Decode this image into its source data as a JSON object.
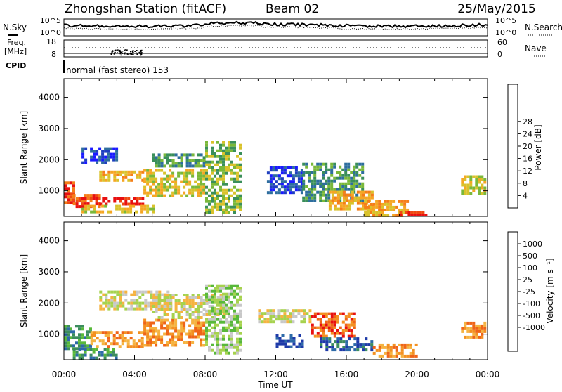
{
  "header": {
    "station": "Zhongshan Station (fitACF)",
    "beam": "Beam 02",
    "date": "25/May/2015"
  },
  "strip": {
    "nsky_label": "N.Sky",
    "nsearch_label": "N.Search",
    "nsky_ticks": [
      "10^5",
      "10^0"
    ],
    "nsearch_ticks": [
      "10^5",
      "10^0"
    ],
    "freq_label_1": "Freq.",
    "freq_label_2": "[MHz]",
    "freq_ticks": [
      "18",
      "8"
    ],
    "nave_label": "Nave",
    "nave_ticks": [
      "60",
      "0"
    ],
    "cpid_label": "CPID",
    "cpid_text": "normal (fast stereo) 153"
  },
  "axes": {
    "ylabel": "Slant Range [km]",
    "xlabel": "Time UT",
    "x_ticks": [
      "00:00",
      "04:00",
      "08:00",
      "12:00",
      "16:00",
      "20:00",
      "00:00"
    ],
    "y_ticks": [
      "1000",
      "2000",
      "3000",
      "4000"
    ],
    "x_range_hours": [
      0,
      24
    ],
    "y_range_km": [
      180,
      4600
    ]
  },
  "power_scale": {
    "label": "Power [dB]",
    "ticks": [
      "4",
      "8",
      "12",
      "16",
      "20",
      "24",
      "28"
    ],
    "colors": [
      "#1a1aff",
      "#1f3fbf",
      "#2e6e9e",
      "#3a8f5a",
      "#7ab83a",
      "#d9c22b",
      "#f5a623",
      "#f57e18",
      "#ef4a12",
      "#e81010"
    ]
  },
  "velocity_scale": {
    "label": "Velocity [m s⁻¹]",
    "ticks": [
      "1000",
      "500",
      "100",
      "25",
      "-25",
      "-100",
      "-500",
      "-1000"
    ],
    "colors": [
      "#1e3aa8",
      "#2d6aa8",
      "#3c8d5e",
      "#58b83a",
      "#a6d24e",
      "#c8c8c8",
      "#f5b341",
      "#f39021",
      "#ef6418",
      "#e81010"
    ]
  },
  "chart_data": [
    {
      "type": "heatmap",
      "title": "",
      "xlabel": "Time UT",
      "ylabel": "Slant Range [km]",
      "colorbar_label": "Power [dB]",
      "xlim": [
        0,
        24
      ],
      "ylim": [
        180,
        4600
      ],
      "regions": [
        {
          "t": [
            0.0,
            0.5
          ],
          "r": [
            600,
            1300
          ],
          "level": 8
        },
        {
          "t": [
            0.5,
            2.0
          ],
          "r": [
            500,
            900
          ],
          "level": 8
        },
        {
          "t": [
            2.0,
            4.5
          ],
          "r": [
            550,
            800
          ],
          "level": 9
        },
        {
          "t": [
            1.0,
            5.0
          ],
          "r": [
            300,
            550
          ],
          "level": 5
        },
        {
          "t": [
            1.0,
            3.0
          ],
          "r": [
            1900,
            2400
          ],
          "level": 1
        },
        {
          "t": [
            2.0,
            4.5
          ],
          "r": [
            1350,
            1650
          ],
          "level": 6
        },
        {
          "t": [
            4.5,
            8.0
          ],
          "r": [
            800,
            1700
          ],
          "level": 5
        },
        {
          "t": [
            5.0,
            8.0
          ],
          "r": [
            1800,
            2200
          ],
          "level": 3
        },
        {
          "t": [
            8.0,
            10.0
          ],
          "r": [
            300,
            2600
          ],
          "level": 4
        },
        {
          "t": [
            11.5,
            13.5
          ],
          "r": [
            900,
            1800
          ],
          "level": 1
        },
        {
          "t": [
            13.5,
            17.0
          ],
          "r": [
            700,
            1900
          ],
          "level": 3
        },
        {
          "t": [
            15.0,
            17.5
          ],
          "r": [
            400,
            1000
          ],
          "level": 6
        },
        {
          "t": [
            17.0,
            19.5
          ],
          "r": [
            200,
            700
          ],
          "level": 6
        },
        {
          "t": [
            19.0,
            20.5
          ],
          "r": [
            200,
            350
          ],
          "level": 9
        },
        {
          "t": [
            22.5,
            23.8
          ],
          "r": [
            900,
            1500
          ],
          "level": 5
        }
      ]
    },
    {
      "type": "heatmap",
      "title": "",
      "xlabel": "Time UT",
      "ylabel": "Slant Range [km]",
      "colorbar_label": "Velocity [m s⁻¹]",
      "xlim": [
        0,
        24
      ],
      "ylim": [
        180,
        4600
      ],
      "regions": [
        {
          "t": [
            0.0,
            1.5
          ],
          "r": [
            500,
            1300
          ],
          "level": 2
        },
        {
          "t": [
            1.5,
            4.5
          ],
          "r": [
            600,
            1100
          ],
          "level": 7
        },
        {
          "t": [
            0.5,
            3.0
          ],
          "r": [
            250,
            550
          ],
          "level": 2
        },
        {
          "t": [
            2.0,
            6.0
          ],
          "r": [
            1800,
            2400
          ],
          "level": 5
        },
        {
          "t": [
            4.5,
            8.0
          ],
          "r": [
            600,
            1500
          ],
          "level": 7
        },
        {
          "t": [
            5.0,
            9.0
          ],
          "r": [
            1500,
            2300
          ],
          "level": 5
        },
        {
          "t": [
            8.0,
            10.0
          ],
          "r": [
            400,
            2600
          ],
          "level": 4
        },
        {
          "t": [
            11.0,
            14.0
          ],
          "r": [
            1400,
            1800
          ],
          "level": 5
        },
        {
          "t": [
            12.0,
            13.5
          ],
          "r": [
            600,
            1000
          ],
          "level": 0
        },
        {
          "t": [
            14.0,
            16.5
          ],
          "r": [
            900,
            1700
          ],
          "level": 8
        },
        {
          "t": [
            14.5,
            17.5
          ],
          "r": [
            500,
            900
          ],
          "level": 1
        },
        {
          "t": [
            17.5,
            20.0
          ],
          "r": [
            250,
            700
          ],
          "level": 7
        },
        {
          "t": [
            22.5,
            23.8
          ],
          "r": [
            900,
            1400
          ],
          "level": 7
        }
      ]
    }
  ]
}
